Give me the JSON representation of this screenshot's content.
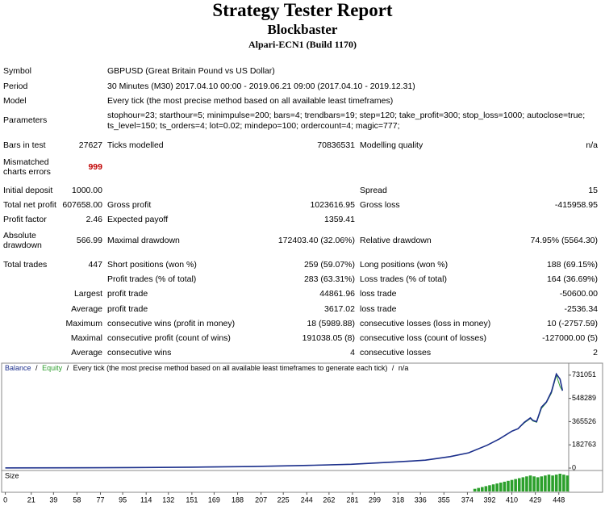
{
  "header": {
    "title": "Strategy Tester Report",
    "subtitle": "Blockbaster",
    "server": "Alpari-ECN1 (Build 1170)"
  },
  "info": {
    "rows": [
      [
        "Symbol",
        "GBPUSD (Great Britain Pound vs US Dollar)"
      ],
      [
        "Period",
        "30 Minutes (M30) 2017.04.10 00:00 - 2019.06.21 09:00 (2017.04.10 - 2019.12.31)"
      ],
      [
        "Model",
        "Every tick (the most precise method based on all available least timeframes)"
      ],
      [
        "Parameters",
        "stophour=23; starthour=5; minimpulse=200; bars=4; trendbars=19; step=120; take_profit=300; stop_loss=1000; autoclose=true; ts_level=150; ts_orders=4; lot=0.02; mindepo=100; ordercount=4; magic=777;"
      ]
    ]
  },
  "stats": {
    "rows": [
      [
        "Bars in test",
        "27627",
        "Ticks modelled",
        "70836531",
        "Modelling quality",
        "n/a"
      ],
      [
        "Mismatched charts errors",
        "999",
        null,
        null,
        null,
        null
      ],
      [
        "Initial deposit",
        "1000.00",
        null,
        null,
        "Spread",
        "15"
      ],
      [
        "Total net profit",
        "607658.00",
        "Gross profit",
        "1023616.95",
        "Gross loss",
        "-415958.95"
      ],
      [
        "Profit factor",
        "2.46",
        "Expected payoff",
        "1359.41",
        null,
        null
      ],
      [
        "Absolute drawdown",
        "566.99",
        "Maximal drawdown",
        "172403.40 (32.06%)",
        "Relative drawdown",
        "74.95% (5564.30)"
      ],
      [
        "Total trades",
        "447",
        "Short positions (won %)",
        "259 (59.07%)",
        "Long positions (won %)",
        "188 (69.15%)"
      ],
      [
        null,
        null,
        "Profit trades (% of total)",
        "283 (63.31%)",
        "Loss trades (% of total)",
        "164 (36.69%)"
      ],
      [
        null,
        "Largest",
        "profit trade",
        "44861.96",
        "loss trade",
        "-50600.00"
      ],
      [
        null,
        "Average",
        "profit trade",
        "3617.02",
        "loss trade",
        "-2536.34"
      ],
      [
        null,
        "Maximum",
        "consecutive wins (profit in money)",
        "18 (5989.88)",
        "consecutive losses (loss in money)",
        "10 (-2757.59)"
      ],
      [
        null,
        "Maximal",
        "consecutive profit (count of wins)",
        "191038.05 (8)",
        "consecutive loss (count of losses)",
        "-127000.00 (5)"
      ],
      [
        null,
        "Average",
        "consecutive wins",
        "4",
        "consecutive losses",
        "2"
      ]
    ]
  },
  "chart_data": {
    "type": "line",
    "legend_separator": "/",
    "model_text": "Every tick (the most precise method based on all available least timeframes to generate each tick)",
    "quality": "n/a",
    "x": [
      0,
      50,
      100,
      150,
      200,
      250,
      280,
      300,
      320,
      340,
      360,
      375,
      390,
      400,
      410,
      415,
      420,
      425,
      427,
      430,
      434,
      438,
      442,
      446,
      449,
      451
    ],
    "series": [
      {
        "name": "Balance",
        "color": "#1c2f8c",
        "values": [
          1000,
          2000,
          4000,
          7000,
          12000,
          22000,
          30000,
          40000,
          50000,
          62000,
          90000,
          120000,
          180000,
          230000,
          290000,
          310000,
          360000,
          395000,
          375000,
          365000,
          480000,
          520000,
          600000,
          740000,
          700000,
          608658
        ]
      },
      {
        "name": "Equity",
        "color": "#2e9e2e",
        "values": [
          1000,
          2000,
          4000,
          7000,
          12000,
          22000,
          30000,
          40000,
          50000,
          62000,
          90000,
          120000,
          180000,
          230000,
          290000,
          310000,
          355000,
          390000,
          370000,
          360000,
          470000,
          515000,
          590000,
          730000,
          640000,
          608658
        ]
      }
    ],
    "xlim": [
      -3,
      456
    ],
    "ylim": [
      0,
      800000
    ],
    "xticks": [
      0,
      21,
      39,
      58,
      77,
      95,
      114,
      132,
      151,
      169,
      188,
      207,
      225,
      244,
      262,
      281,
      299,
      318,
      336,
      355,
      374,
      392,
      410,
      429,
      448
    ],
    "yticks": [
      0,
      182763,
      365526,
      548289,
      731051
    ],
    "size": {
      "label": "Size",
      "color": "#2ca02c",
      "ylim": [
        0,
        1
      ],
      "x": [
        380,
        383,
        386,
        389,
        392,
        395,
        398,
        401,
        404,
        407,
        410,
        413,
        416,
        419,
        422,
        425,
        428,
        431,
        434,
        437,
        440,
        443,
        446,
        449,
        452,
        455
      ],
      "values": [
        0.15,
        0.2,
        0.25,
        0.3,
        0.35,
        0.4,
        0.45,
        0.5,
        0.55,
        0.6,
        0.65,
        0.7,
        0.75,
        0.8,
        0.85,
        0.9,
        0.85,
        0.8,
        0.85,
        0.9,
        0.95,
        0.9,
        0.95,
        1.0,
        0.95,
        0.9
      ]
    }
  }
}
